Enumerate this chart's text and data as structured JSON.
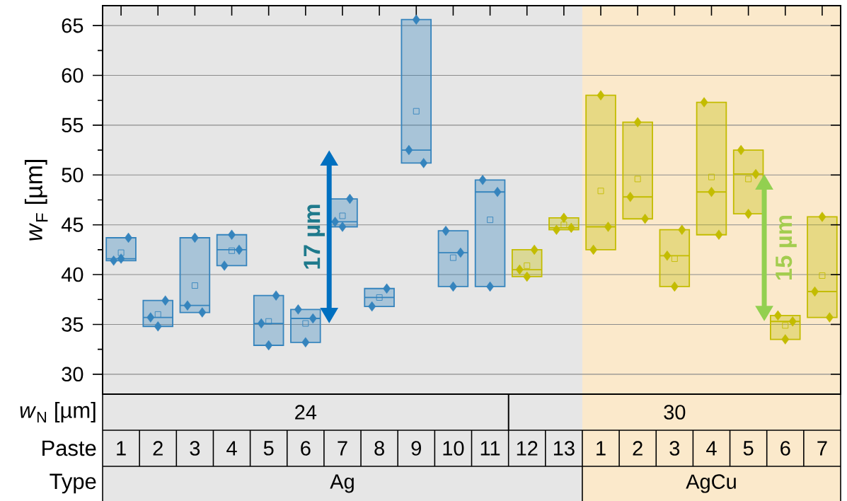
{
  "chart_data": {
    "type": "box",
    "ylabel": "*w*$_{F}$ [µm]",
    "xlabel": "Paste",
    "categories": [
      "1",
      "2",
      "3",
      "4",
      "5",
      "6",
      "7",
      "8",
      "9",
      "10",
      "11",
      "12",
      "13",
      "1",
      "2",
      "3",
      "4",
      "5",
      "6",
      "7"
    ],
    "ylim": [
      28,
      67
    ],
    "yticks": [
      30,
      {
        "value": 32.5,
        "label": null
      },
      35,
      {
        "value": 37.5,
        "label": null
      },
      40,
      {
        "value": 42.5,
        "label": null
      },
      45,
      {
        "value": 47.5,
        "label": null
      },
      50,
      {
        "value": 52.5,
        "label": null
      },
      55,
      {
        "value": 57.5,
        "label": null
      },
      60,
      {
        "value": 62.5,
        "label": null
      },
      65
    ],
    "grid": "y",
    "marker": "diamond",
    "bands": [
      {
        "axis": "x",
        "from": "1",
        "to": "13",
        "color": "#e6e6e6"
      }
    ],
    "annotations": [
      "17 µm",
      "15 µm",
      "*w*$_{N}$ [µm]",
      "Type",
      "Ag",
      "AgCu",
      "24",
      "30"
    ],
    "series": [
      {
        "color": "#3584bd",
        "boxes": [
          {
            "low": 41.4,
            "q1": 41.4,
            "median": 41.6,
            "q3": 43.7,
            "high": 43.7,
            "mean": 42.2
          },
          {
            "low": 34.8,
            "q1": 34.8,
            "median": 35.7,
            "q3": 37.4,
            "high": 37.4,
            "mean": 36.0
          },
          {
            "low": 36.2,
            "q1": 36.2,
            "median": 36.9,
            "q3": 43.7,
            "high": 43.7,
            "mean": 38.9
          },
          {
            "low": 40.9,
            "q1": 40.9,
            "median": 42.5,
            "q3": 44.0,
            "high": 44.0,
            "mean": 42.4
          },
          {
            "low": 32.9,
            "q1": 32.9,
            "median": 35.1,
            "q3": 37.9,
            "high": 37.9,
            "mean": 35.3
          },
          {
            "low": 33.2,
            "q1": 33.2,
            "median": 35.6,
            "q3": 36.5,
            "high": 36.5,
            "mean": 35.1
          },
          {
            "low": 44.8,
            "q1": 44.8,
            "median": 45.3,
            "q3": 47.6,
            "high": 47.6,
            "mean": 45.9
          },
          {
            "low": 36.8,
            "q1": 36.8,
            "median": 37.7,
            "q3": 38.6,
            "high": 38.6,
            "mean": 37.7
          },
          {
            "low": 51.2,
            "q1": 51.2,
            "median": 52.5,
            "q3": 65.6,
            "high": 65.6,
            "mean": 56.4
          },
          {
            "low": 38.8,
            "q1": 38.8,
            "median": 42.2,
            "q3": 44.4,
            "high": 44.4,
            "mean": 41.7
          },
          {
            "low": 38.8,
            "q1": 38.8,
            "median": 48.3,
            "q3": 49.5,
            "high": 49.5,
            "mean": 45.5
          },
          null,
          null,
          null,
          null,
          null,
          null,
          null,
          null,
          null
        ]
      },
      {
        "color": "#c3bc00",
        "boxes": [
          null,
          null,
          null,
          null,
          null,
          null,
          null,
          null,
          null,
          null,
          null,
          {
            "low": 39.8,
            "q1": 39.8,
            "median": 40.5,
            "q3": 42.5,
            "high": 42.5,
            "mean": 40.9
          },
          {
            "low": 44.5,
            "q1": 44.5,
            "median": 44.7,
            "q3": 45.7,
            "high": 45.7,
            "mean": 45.0
          },
          {
            "low": 42.5,
            "q1": 42.5,
            "median": 44.8,
            "q3": 58.0,
            "high": 58.0,
            "mean": 48.4
          },
          {
            "low": 45.6,
            "q1": 45.6,
            "median": 47.8,
            "q3": 55.3,
            "high": 55.3,
            "mean": 49.6
          },
          {
            "low": 38.8,
            "q1": 38.8,
            "median": 41.9,
            "q3": 44.5,
            "high": 44.5,
            "mean": 41.6
          },
          {
            "low": 44.0,
            "q1": 44.0,
            "median": 48.3,
            "q3": 57.3,
            "high": 57.3,
            "mean": 49.8
          },
          {
            "low": 46.1,
            "q1": 46.1,
            "median": 50.1,
            "q3": 52.5,
            "high": 52.5,
            "mean": 49.6
          },
          {
            "low": 33.5,
            "q1": 33.5,
            "median": 35.3,
            "q3": 35.9,
            "high": 35.9,
            "mean": 34.9
          },
          {
            "low": 35.7,
            "q1": 35.7,
            "median": 38.3,
            "q3": 45.8,
            "high": 45.8,
            "mean": 39.9
          }
        ]
      },
      {
        "type": "scatter",
        "colors": [
          "#3584bd",
          "#3584bd",
          "#3584bd",
          "#3584bd",
          "#3584bd",
          "#3584bd",
          "#3584bd",
          "#3584bd",
          "#3584bd",
          "#3584bd",
          "#3584bd",
          "#c3bc00",
          "#c3bc00",
          "#c3bc00",
          "#c3bc00",
          "#c3bc00",
          "#c3bc00",
          "#c3bc00",
          "#c3bc00",
          "#c3bc00"
        ],
        "values": [
          41.4,
          35.7,
          36.9,
          40.9,
          35.1,
          36.5,
          45.3,
          36.8,
          52.5,
          44.4,
          49.5,
          40.5,
          44.5,
          42.5,
          47.8,
          41.9,
          57.3,
          52.5,
          35.9,
          38.3
        ]
      },
      {
        "type": "scatter",
        "colors": [
          "#3584bd",
          "#3584bd",
          "#3584bd",
          "#3584bd",
          "#3584bd",
          "#3584bd",
          "#3584bd",
          "#3584bd",
          "#3584bd",
          "#3584bd",
          "#3584bd",
          "#c3bc00",
          "#c3bc00",
          "#c3bc00",
          "#c3bc00",
          "#c3bc00",
          "#c3bc00",
          "#c3bc00",
          "#c3bc00",
          "#c3bc00"
        ],
        "values": [
          41.6,
          34.8,
          43.7,
          44.0,
          32.9,
          33.2,
          44.8,
          null,
          65.6,
          38.8,
          38.8,
          39.8,
          45.7,
          58.0,
          55.3,
          38.8,
          48.3,
          46.1,
          33.5,
          45.8
        ]
      },
      {
        "type": "scatter",
        "colors": [
          "#3584bd",
          "#3584bd",
          "#3584bd",
          "#3584bd",
          "#3584bd",
          "#3584bd",
          "#3584bd",
          "#3584bd",
          "#3584bd",
          "#3584bd",
          "#3584bd",
          "#c3bc00",
          "#c3bc00",
          "#c3bc00",
          "#c3bc00",
          "#c3bc00",
          "#c3bc00",
          "#c3bc00",
          "#c3bc00",
          "#c3bc00"
        ],
        "values": [
          43.7,
          37.4,
          36.2,
          42.5,
          37.9,
          35.6,
          47.6,
          38.6,
          51.2,
          42.2,
          48.3,
          42.5,
          44.7,
          44.8,
          45.6,
          44.5,
          44.0,
          50.1,
          35.3,
          35.7
        ]
      }
    ]
  }
}
